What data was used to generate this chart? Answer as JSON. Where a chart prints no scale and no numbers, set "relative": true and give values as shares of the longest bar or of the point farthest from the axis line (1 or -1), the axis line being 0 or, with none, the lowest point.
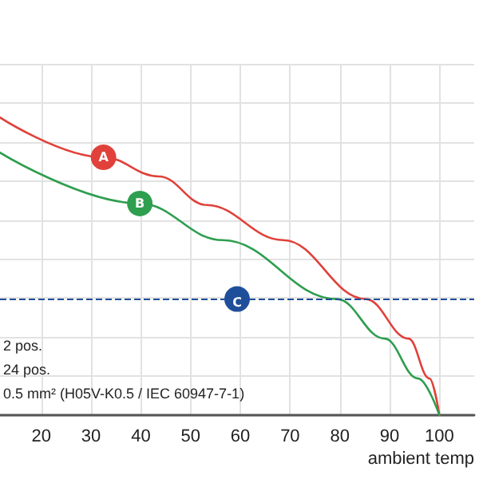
{
  "chart_data": {
    "type": "line",
    "relative": true,
    "xlabel": "ambient temp",
    "xlim": [
      11.7,
      107
    ],
    "xticks": [
      20,
      30,
      40,
      50,
      60,
      70,
      80,
      90,
      100
    ],
    "grid": true,
    "marker": "none",
    "line_style": "solid",
    "series": [
      {
        "color": "#e0413a",
        "x": [
          11.7,
          32.5,
          43.6,
          53.2,
          68.6,
          85.2,
          93.8,
          98,
          100
        ],
        "values": [
          1,
          0.866,
          0.802,
          0.706,
          0.588,
          0.39,
          0.257,
          0.123,
          0
        ]
      },
      {
        "color": "#2e9e4f",
        "x": [
          11.7,
          39.8,
          56.4,
          79.4,
          89,
          95.7,
          100
        ],
        "values": [
          0.882,
          0.711,
          0.588,
          0.39,
          0.257,
          0.123,
          0
        ]
      }
    ],
    "ref_lines": [
      {
        "axis": "y",
        "value": 0.39,
        "label": "C",
        "color": "#1f4e9a",
        "line_style": "dashed"
      }
    ],
    "annotations": [
      {
        "text": "A",
        "x": 32.5,
        "y": 0.866
      },
      {
        "text": "B",
        "x": 39.8,
        "y": 0.711
      },
      "2 pos.",
      "24 pos.",
      "0.5 mm² (H05V-K0.5 / IEC 60947-7-1)"
    ]
  }
}
